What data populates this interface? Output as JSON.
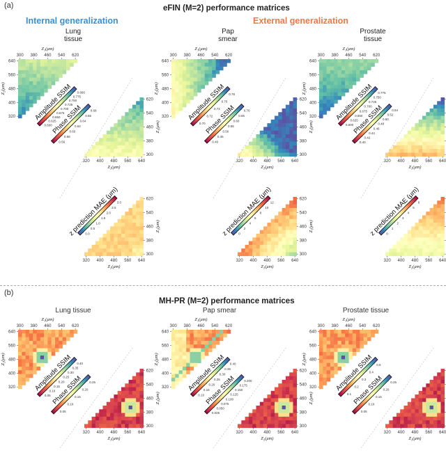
{
  "panel_a": {
    "letter": "(a)",
    "title": "eFIN (M=2) performance matrices",
    "group_internal": {
      "label": "Internal generalization",
      "color": "#3d8fd1"
    },
    "group_external": {
      "label": "External generalization",
      "color": "#f0774a"
    }
  },
  "panel_b": {
    "letter": "(b)",
    "title": "MH-PR (M=2) performance matrices"
  },
  "axis": {
    "z1_label": "Z₁(μm)",
    "z2_label": "Z₂(μm)",
    "top_ticks": [
      "300",
      "380",
      "460",
      "540",
      "620"
    ],
    "left_ticks": [
      "640",
      "560",
      "480",
      "400",
      "320"
    ],
    "right_ticks": [
      "620",
      "540",
      "460",
      "380",
      "300"
    ],
    "bottom_ticks": [
      "320",
      "400",
      "480",
      "560",
      "640"
    ]
  },
  "chart_data": [
    {
      "type": "heatmap",
      "panel": "a",
      "sample": "Lung tissue",
      "title_lines": [
        "Lung",
        "tissue"
      ],
      "title_color": "#5b9bd5",
      "amplitude_cbar": {
        "label": "Amplitude SSIM",
        "ticks": [
          "0.600",
          "0.625",
          "0.650",
          "0.675",
          "0.700",
          "0.725",
          "0.750",
          "0.775",
          "0.800"
        ]
      },
      "phase_cbar": {
        "label": "Phase SSIM",
        "ticks": [
          "0.56",
          "0.58",
          "0.60",
          "0.62",
          "0.64",
          "0.66",
          "0.68"
        ]
      },
      "mae_cbar": {
        "label": "z prediction MAE (μm)",
        "ticks": [
          "0.0",
          "0.5",
          "1.0",
          "1.5",
          "2.0",
          "2.5",
          "3.0"
        ]
      },
      "amp_pattern": "lung_amp",
      "phase_pattern": "lung_phase",
      "mae_pattern": "lung_mae"
    },
    {
      "type": "heatmap",
      "panel": "a",
      "sample": "Pap smear",
      "title_lines": [
        "Pap",
        "smear"
      ],
      "title_color": "#f0774a",
      "amplitude_cbar": {
        "label": "Amplitude SSIM",
        "ticks": [
          "0.70",
          "0.72",
          "0.74",
          "0.76",
          "0.78"
        ]
      },
      "phase_cbar": {
        "label": "Phase SSIM",
        "ticks": [
          "0.40",
          "0.45",
          "0.50",
          "0.55",
          "0.60",
          "0.65",
          "0.70"
        ]
      },
      "mae_cbar": {
        "label": "z prediction MAE (μm)",
        "ticks": [
          "0",
          "2",
          "4",
          "6",
          "8",
          "10",
          "12"
        ]
      },
      "amp_pattern": "pap_amp",
      "phase_pattern": "pap_phase",
      "mae_pattern": "pap_mae"
    },
    {
      "type": "heatmap",
      "panel": "a",
      "sample": "Prostate tissue",
      "title_lines": [
        "Prostate",
        "tissue"
      ],
      "title_color": "#f0774a",
      "amplitude_cbar": {
        "label": "Amplitude SSIM",
        "ticks": [
          "0.600",
          "0.625",
          "0.650",
          "0.675",
          "0.700",
          "0.725",
          "0.750",
          "0.775"
        ]
      },
      "phase_cbar": {
        "label": "Phase SSIM",
        "ticks": [
          "0.40",
          "0.42",
          "0.44",
          "0.46",
          "0.48",
          "0.50",
          "0.52",
          "0.54"
        ]
      },
      "mae_cbar": {
        "label": "z prediction MAE (μm)",
        "ticks": [
          "0",
          "1",
          "2",
          "3",
          "4",
          "5",
          "6"
        ]
      },
      "amp_pattern": "pros_amp",
      "phase_pattern": "pros_phase",
      "mae_pattern": "pros_mae"
    },
    {
      "type": "heatmap",
      "panel": "b",
      "sample": "Lung tissue",
      "title_lines": [
        "Lung tissue"
      ],
      "title_color": "#333333",
      "amplitude_cbar": {
        "label": "Amplitude SSIM",
        "ticks": [
          "0.05",
          "0.10",
          "0.15",
          "0.20",
          "0.25",
          "0.30",
          "0.35",
          "0.40"
        ]
      },
      "phase_cbar": {
        "label": "Phase SSIM",
        "ticks": [
          "0.05",
          "0.10",
          "0.15",
          "0.20",
          "0.25"
        ]
      },
      "amp_pattern": "mh_amp",
      "phase_pattern": "mh_phase"
    },
    {
      "type": "heatmap",
      "panel": "b",
      "sample": "Pap smear",
      "title_lines": [
        "Pap smear"
      ],
      "title_color": "#333333",
      "amplitude_cbar": {
        "label": "Amplitude SSIM",
        "ticks": [
          "0.10",
          "0.15",
          "0.20",
          "0.25",
          "0.30",
          "0.35",
          "0.40"
        ]
      },
      "phase_cbar": {
        "label": "Phase SSIM",
        "ticks": [
          "0.025",
          "0.050",
          "0.075",
          "0.100",
          "0.125",
          "0.150",
          "0.175",
          "0.200"
        ]
      },
      "amp_pattern": "mhpap_amp",
      "phase_pattern": "mh_phase"
    },
    {
      "type": "heatmap",
      "panel": "b",
      "sample": "Prostate tissue",
      "title_lines": [
        "Prostate tissue"
      ],
      "title_color": "#333333",
      "amplitude_cbar": {
        "label": "Amplitude SSIM",
        "ticks": [
          "0.1",
          "0.2",
          "0.3",
          "0.4",
          "0.5"
        ]
      },
      "phase_cbar": {
        "label": "Phase SSIM",
        "ticks": [
          "0.05",
          "0.10",
          "0.15",
          "0.20",
          "0.25"
        ]
      },
      "amp_pattern": "mh_amp",
      "phase_pattern": "mh_phase"
    }
  ]
}
